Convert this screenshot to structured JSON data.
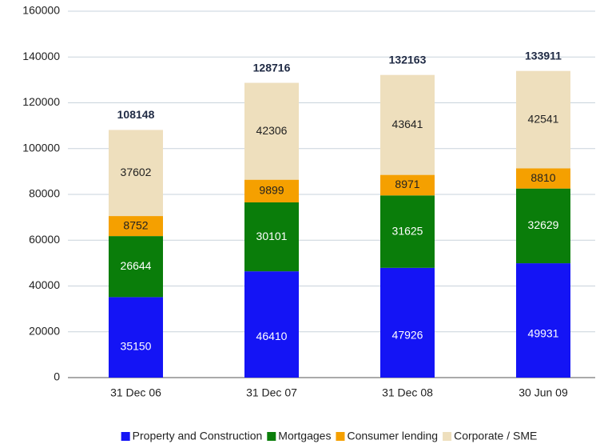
{
  "chart_data": {
    "type": "stacked_bar",
    "categories": [
      "31 Dec 06",
      "31 Dec 07",
      "31 Dec 08",
      "30 Jun 09"
    ],
    "series": [
      {
        "name": "Property and Construction",
        "color": "#1414f5",
        "values": [
          35150,
          46410,
          47926,
          49931
        ]
      },
      {
        "name": "Mortgages",
        "color": "#0a7d0a",
        "values": [
          26644,
          30101,
          31625,
          32629
        ]
      },
      {
        "name": "Consumer lending",
        "color": "#f5a000",
        "values": [
          8752,
          9899,
          8971,
          8810
        ]
      },
      {
        "name": "Corporate / SME",
        "color": "#eedfbd",
        "values": [
          37602,
          42306,
          43641,
          42541
        ]
      }
    ],
    "totals": [
      108148,
      128716,
      132163,
      133911
    ],
    "ylim": [
      0,
      160000
    ],
    "yticks": [
      0,
      20000,
      40000,
      60000,
      80000,
      100000,
      120000,
      140000,
      160000
    ],
    "grid": true,
    "legend": "bottom"
  }
}
